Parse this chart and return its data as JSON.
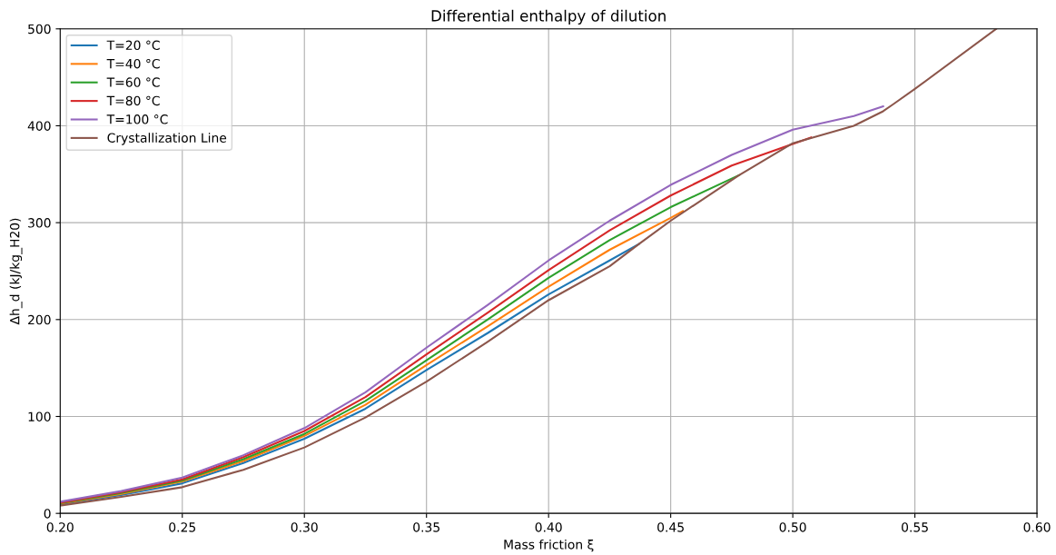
{
  "chart_data": {
    "type": "line",
    "title": "Differential enthalpy of dilution",
    "xlabel": "Mass friction ξ",
    "ylabel": "Δh_d (kJ/kg_H20)",
    "xlim": [
      0.2,
      0.6
    ],
    "ylim": [
      0,
      500
    ],
    "xticks": [
      {
        "value": 0.2,
        "label": "0.20"
      },
      {
        "value": 0.25,
        "label": "0.25"
      },
      {
        "value": 0.3,
        "label": "0.30"
      },
      {
        "value": 0.35,
        "label": "0.35"
      },
      {
        "value": 0.4,
        "label": "0.40"
      },
      {
        "value": 0.45,
        "label": "0.45"
      },
      {
        "value": 0.5,
        "label": "0.50"
      },
      {
        "value": 0.55,
        "label": "0.55"
      },
      {
        "value": 0.6,
        "label": "0.60"
      }
    ],
    "yticks": [
      0,
      100,
      200,
      300,
      400,
      500
    ],
    "grid": true,
    "legend": "top left",
    "series": [
      {
        "name": "T=20 °C",
        "color": "#1f77b4",
        "x": [
          0.2,
          0.225,
          0.25,
          0.275,
          0.3,
          0.325,
          0.35,
          0.375,
          0.4,
          0.425,
          0.437
        ],
        "values": [
          9.5,
          19,
          31,
          52,
          77,
          108,
          148,
          186,
          226,
          261,
          278
        ]
      },
      {
        "name": "T=40 °C",
        "color": "#ff7f0e",
        "x": [
          0.2,
          0.225,
          0.25,
          0.275,
          0.3,
          0.325,
          0.35,
          0.375,
          0.4,
          0.425,
          0.45,
          0.455
        ],
        "values": [
          10,
          20,
          33,
          54,
          80,
          112,
          153,
          193,
          234,
          272,
          305,
          312
        ]
      },
      {
        "name": "T=60 °C",
        "color": "#2ca02c",
        "x": [
          0.2,
          0.225,
          0.25,
          0.275,
          0.3,
          0.325,
          0.35,
          0.375,
          0.4,
          0.425,
          0.45,
          0.478
        ],
        "values": [
          10.5,
          21,
          34,
          56,
          82,
          116,
          158,
          200,
          243,
          282,
          316,
          349
        ]
      },
      {
        "name": "T=80 °C",
        "color": "#d62728",
        "x": [
          0.2,
          0.225,
          0.25,
          0.275,
          0.3,
          0.325,
          0.35,
          0.375,
          0.4,
          0.425,
          0.45,
          0.475,
          0.5075
        ],
        "values": [
          11,
          22,
          35,
          58,
          85,
          120,
          164,
          207,
          251,
          292,
          328,
          359,
          388
        ]
      },
      {
        "name": "T=100 °C",
        "color": "#9467bd",
        "x": [
          0.2,
          0.225,
          0.25,
          0.275,
          0.3,
          0.325,
          0.35,
          0.375,
          0.4,
          0.425,
          0.45,
          0.475,
          0.5,
          0.525,
          0.537
        ],
        "values": [
          12,
          23,
          37,
          60,
          88,
          125,
          171,
          215,
          261,
          302,
          339,
          370,
          396,
          410,
          420
        ]
      },
      {
        "name": "Crystallization Line",
        "color": "#8c564b",
        "x": [
          0.2,
          0.225,
          0.25,
          0.275,
          0.3,
          0.325,
          0.35,
          0.375,
          0.4,
          0.425,
          0.437,
          0.45,
          0.478,
          0.5,
          0.525,
          0.537,
          0.541,
          0.55,
          0.5833
        ],
        "values": [
          8,
          17,
          27,
          45,
          68,
          99,
          136,
          177,
          220,
          255,
          278,
          302,
          349,
          382,
          400,
          415,
          422,
          438,
          500
        ]
      }
    ]
  }
}
